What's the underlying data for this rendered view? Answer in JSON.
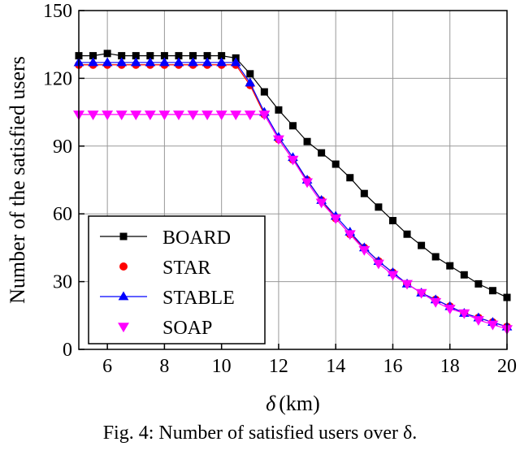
{
  "chart_data": {
    "type": "line",
    "title": "",
    "xlabel": "δ (km)",
    "ylabel": "Number of the satisfied users",
    "xlim": [
      5,
      20
    ],
    "ylim": [
      0,
      150
    ],
    "xticks": [
      6,
      8,
      10,
      12,
      14,
      16,
      18,
      20
    ],
    "yticks": [
      0,
      30,
      60,
      90,
      120,
      150
    ],
    "grid": true,
    "legend_position": "bottom-left",
    "series": [
      {
        "name": "BOARD",
        "color": "#000000",
        "marker": "square",
        "x": [
          5,
          5.5,
          6,
          6.5,
          7,
          7.5,
          8,
          8.5,
          9,
          9.5,
          10,
          10.5,
          11,
          11.5,
          12,
          12.5,
          13,
          13.5,
          14,
          14.5,
          15,
          15.5,
          16,
          16.5,
          17,
          17.5,
          18,
          18.5,
          19,
          19.5,
          20
        ],
        "y": [
          130,
          130,
          131,
          130,
          130,
          130,
          130,
          130,
          130,
          130,
          130,
          129,
          122,
          114,
          106,
          99,
          92,
          87,
          82,
          76,
          69,
          63,
          57,
          51,
          46,
          41,
          37,
          33,
          29,
          26,
          23
        ]
      },
      {
        "name": "STAR",
        "color": "#ff0000",
        "marker": "circle",
        "x": [
          5,
          5.5,
          6,
          6.5,
          7,
          7.5,
          8,
          8.5,
          9,
          9.5,
          10,
          10.5,
          11,
          11.5,
          12,
          12.5,
          13,
          13.5,
          14,
          14.5,
          15,
          15.5,
          16,
          16.5,
          17,
          17.5,
          18,
          18.5,
          19,
          19.5,
          20
        ],
        "y": [
          126,
          126,
          126,
          126,
          126,
          126,
          126,
          126,
          126,
          126,
          126,
          126,
          117,
          104,
          93,
          84,
          75,
          66,
          58,
          51,
          45,
          39,
          34,
          29,
          25,
          22,
          19,
          16,
          14,
          12,
          10
        ]
      },
      {
        "name": "STABLE",
        "color": "#0000ff",
        "marker": "triangle-up",
        "x": [
          5,
          5.5,
          6,
          6.5,
          7,
          7.5,
          8,
          8.5,
          9,
          9.5,
          10,
          10.5,
          11,
          11.5,
          12,
          12.5,
          13,
          13.5,
          14,
          14.5,
          15,
          15.5,
          16,
          16.5,
          17,
          17.5,
          18,
          18.5,
          19,
          19.5,
          20
        ],
        "y": [
          127,
          127,
          127,
          127,
          127,
          127,
          127,
          127,
          127,
          127,
          127,
          127,
          118,
          105,
          94,
          85,
          75,
          66,
          59,
          52,
          45,
          39,
          34,
          29,
          25,
          22,
          19,
          16,
          14,
          12,
          10
        ]
      },
      {
        "name": "SOAP",
        "color": "#ff00ff",
        "marker": "triangle-down",
        "x": [
          5,
          5.5,
          6,
          6.5,
          7,
          7.5,
          8,
          8.5,
          9,
          9.5,
          10,
          10.5,
          11,
          11.5,
          12,
          12.5,
          13,
          13.5,
          14,
          14.5,
          15,
          15.5,
          16,
          16.5,
          17,
          17.5,
          18,
          18.5,
          19,
          19.5,
          20
        ],
        "y": [
          104,
          104,
          104,
          104,
          104,
          104,
          104,
          104,
          104,
          104,
          104,
          104,
          104,
          104,
          93,
          84,
          74,
          65,
          58,
          51,
          44,
          38,
          33,
          29,
          25,
          21,
          18,
          16,
          13,
          11,
          9
        ]
      }
    ]
  },
  "caption": "Fig. 4: Number of satisfied users over δ."
}
